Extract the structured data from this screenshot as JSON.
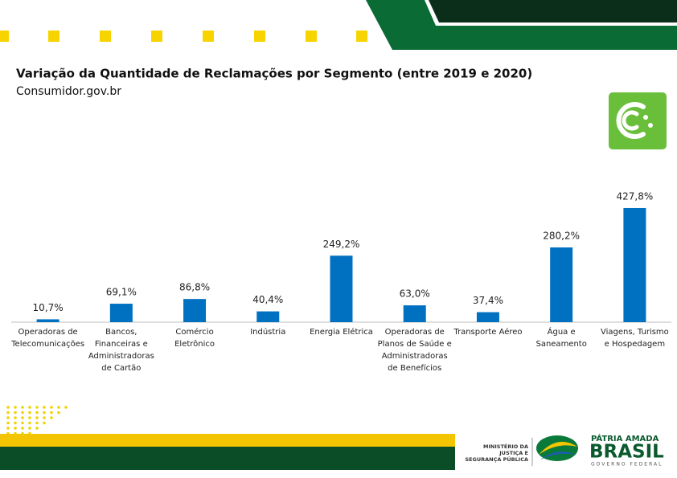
{
  "chart_data": {
    "type": "bar",
    "title": "Variação da Quantidade de Reclamações por Segmento (entre 2019 e 2020)",
    "subtitle": "Consumidor.gov.br",
    "categories": [
      [
        "Operadoras de",
        "Telecomunicações"
      ],
      [
        "Bancos,",
        "Financeiras e",
        "Administradoras",
        "de Cartão"
      ],
      [
        "Comércio",
        "Eletrônico"
      ],
      [
        "Indústria"
      ],
      [
        "Energia Elétrica"
      ],
      [
        "Operadoras de",
        "Planos de Saúde e",
        "Administradoras",
        "de Benefícios"
      ],
      [
        "Transporte Aéreo"
      ],
      [
        "Água e",
        "Saneamento"
      ],
      [
        "Viagens, Turismo",
        "e Hospedagem"
      ]
    ],
    "values": [
      10.7,
      69.1,
      86.8,
      40.4,
      249.2,
      63.0,
      37.4,
      280.2,
      427.8
    ],
    "value_labels": [
      "10,7%",
      "69,1%",
      "86,8%",
      "40,4%",
      "249,2%",
      "63,0%",
      "37,4%",
      "280,2%",
      "427,8%"
    ],
    "color": "#0070c0"
  },
  "footer": {
    "ministry": [
      "MINISTÉRIO DA",
      "JUSTIÇA E",
      "SEGURANÇA PÚBLICA"
    ],
    "motto": "PÁTRIA AMADA",
    "country": "BRASIL",
    "government": "GOVERNO FEDERAL"
  }
}
